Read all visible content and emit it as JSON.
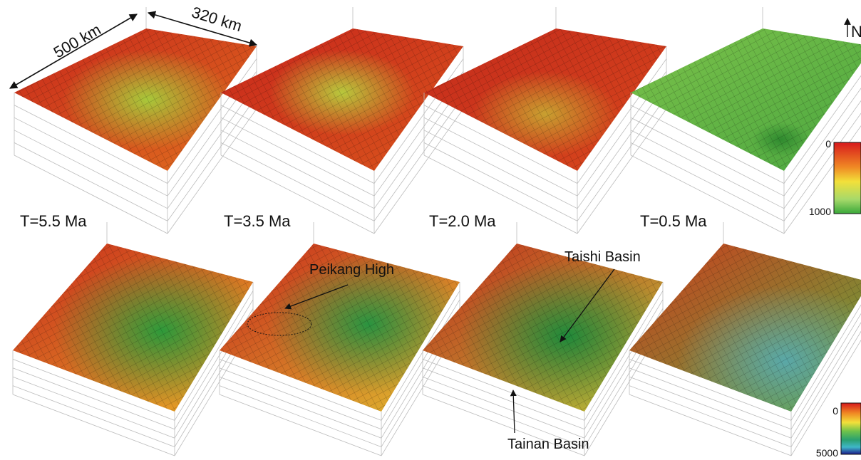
{
  "scale": {
    "length": "500 km",
    "width": "320 km"
  },
  "north": "N",
  "panels": [
    {
      "time": "T=5.5 Ma"
    },
    {
      "time": "T=3.5 Ma"
    },
    {
      "time": "T=2.0 Ma"
    },
    {
      "time": "T=0.5 Ma"
    }
  ],
  "colorbars": [
    {
      "min": 0,
      "max": 1000
    },
    {
      "min": 0,
      "max": 5000
    }
  ],
  "annotations": [
    "Peikang High",
    "Taishi Basin",
    "Tainan Basin"
  ]
}
